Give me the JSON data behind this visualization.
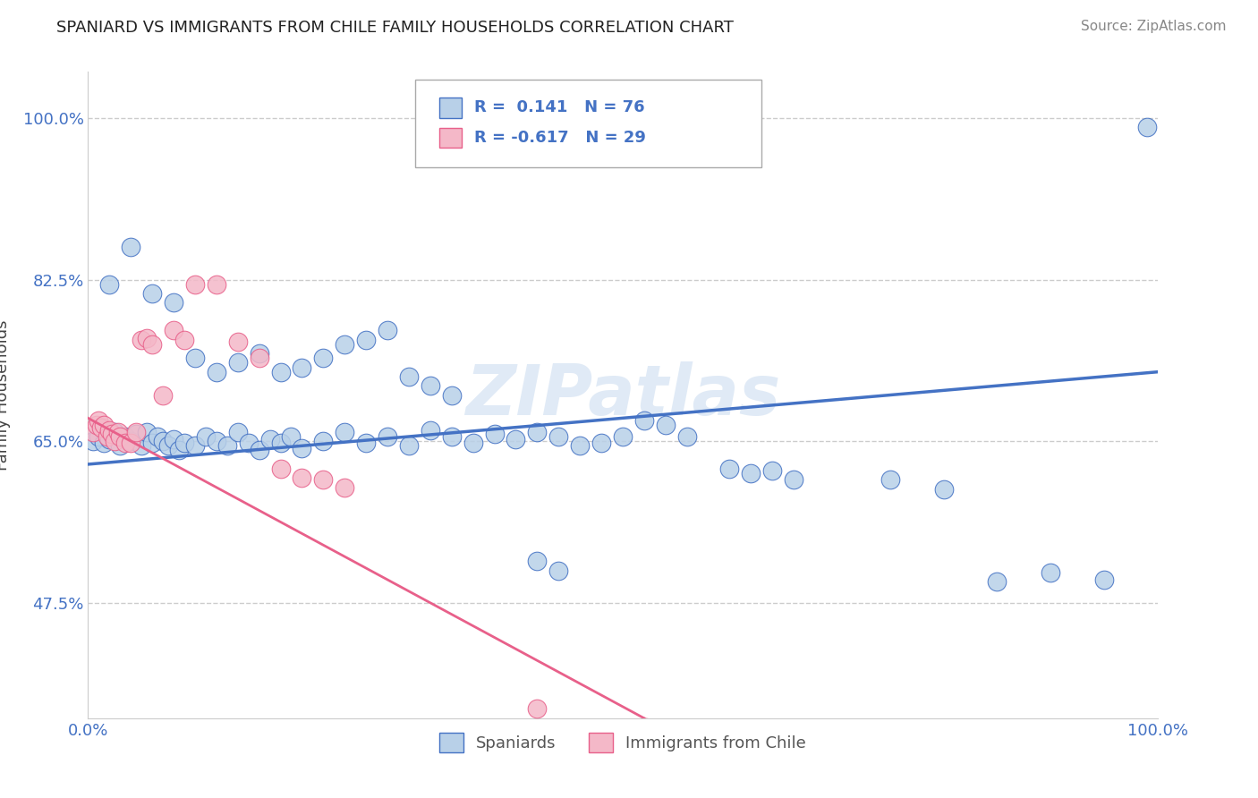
{
  "title": "SPANIARD VS IMMIGRANTS FROM CHILE FAMILY HOUSEHOLDS CORRELATION CHART",
  "source_text": "Source: ZipAtlas.com",
  "ylabel": "Family Households",
  "xlim": [
    0.0,
    1.0
  ],
  "ylim": [
    0.35,
    1.05
  ],
  "yticks": [
    0.475,
    0.65,
    0.825,
    1.0
  ],
  "ytick_labels": [
    "47.5%",
    "65.0%",
    "82.5%",
    "100.0%"
  ],
  "xticks": [
    0.0,
    1.0
  ],
  "xtick_labels": [
    "0.0%",
    "100.0%"
  ],
  "legend_line1": "R =  0.141   N = 76",
  "legend_line2": "R = -0.617   N = 29",
  "color_blue": "#b8d0e8",
  "color_pink": "#f4b8c8",
  "line_color_blue": "#4472c4",
  "line_color_pink": "#e8608a",
  "legend_text_color": "#4472c4",
  "watermark": "ZIPatlas",
  "blue_trend_x0": 0.0,
  "blue_trend_y0": 0.625,
  "blue_trend_x1": 1.0,
  "blue_trend_y1": 0.725,
  "pink_trend_x0": 0.0,
  "pink_trend_y0": 0.675,
  "pink_trend_x1": 0.52,
  "pink_trend_y1": 0.35,
  "spaniards_x": [
    0.005,
    0.01,
    0.015,
    0.02,
    0.025,
    0.03,
    0.035,
    0.04,
    0.045,
    0.05,
    0.055,
    0.06,
    0.065,
    0.07,
    0.075,
    0.08,
    0.085,
    0.09,
    0.1,
    0.11,
    0.12,
    0.13,
    0.14,
    0.15,
    0.16,
    0.17,
    0.18,
    0.19,
    0.2,
    0.22,
    0.24,
    0.26,
    0.28,
    0.3,
    0.32,
    0.34,
    0.36,
    0.38,
    0.4,
    0.42,
    0.44,
    0.46,
    0.48,
    0.5,
    0.52,
    0.54,
    0.56,
    0.3,
    0.32,
    0.34,
    0.28,
    0.26,
    0.24,
    0.22,
    0.2,
    0.18,
    0.16,
    0.14,
    0.12,
    0.1,
    0.08,
    0.06,
    0.04,
    0.02,
    0.6,
    0.62,
    0.64,
    0.66,
    0.75,
    0.8,
    0.85,
    0.9,
    0.42,
    0.44,
    0.95,
    0.99
  ],
  "spaniards_y": [
    0.65,
    0.655,
    0.648,
    0.652,
    0.66,
    0.645,
    0.655,
    0.65,
    0.658,
    0.645,
    0.66,
    0.648,
    0.655,
    0.65,
    0.645,
    0.652,
    0.64,
    0.648,
    0.645,
    0.655,
    0.65,
    0.645,
    0.66,
    0.648,
    0.64,
    0.652,
    0.648,
    0.655,
    0.642,
    0.65,
    0.66,
    0.648,
    0.655,
    0.645,
    0.662,
    0.655,
    0.648,
    0.658,
    0.652,
    0.66,
    0.655,
    0.645,
    0.648,
    0.655,
    0.672,
    0.668,
    0.655,
    0.72,
    0.71,
    0.7,
    0.77,
    0.76,
    0.755,
    0.74,
    0.73,
    0.725,
    0.745,
    0.735,
    0.725,
    0.74,
    0.8,
    0.81,
    0.86,
    0.82,
    0.62,
    0.615,
    0.618,
    0.608,
    0.608,
    0.598,
    0.498,
    0.508,
    0.52,
    0.51,
    0.5,
    0.99
  ],
  "chile_x": [
    0.005,
    0.008,
    0.01,
    0.012,
    0.015,
    0.018,
    0.02,
    0.022,
    0.025,
    0.028,
    0.03,
    0.035,
    0.04,
    0.045,
    0.05,
    0.055,
    0.06,
    0.07,
    0.08,
    0.09,
    0.1,
    0.12,
    0.14,
    0.16,
    0.18,
    0.2,
    0.22,
    0.24,
    0.42
  ],
  "chile_y": [
    0.66,
    0.668,
    0.672,
    0.665,
    0.668,
    0.655,
    0.662,
    0.658,
    0.65,
    0.66,
    0.655,
    0.648,
    0.648,
    0.66,
    0.76,
    0.762,
    0.755,
    0.7,
    0.77,
    0.76,
    0.82,
    0.82,
    0.758,
    0.74,
    0.62,
    0.61,
    0.608,
    0.6,
    0.36
  ]
}
